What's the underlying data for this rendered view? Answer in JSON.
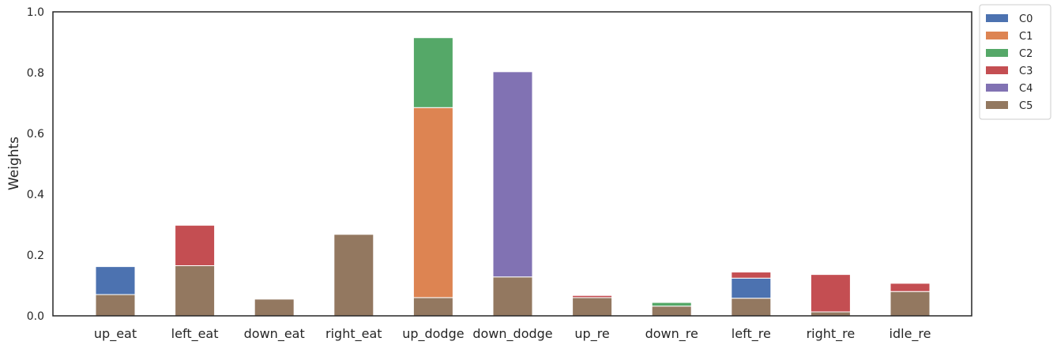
{
  "chart_data": {
    "type": "bar",
    "stacked": true,
    "ylabel": "Weights",
    "ylim": [
      0,
      1.0
    ],
    "yticks": [
      "0.0",
      "0.2",
      "0.4",
      "0.6",
      "0.8",
      "1.0"
    ],
    "grid": false,
    "legend_position": "outside-top-right",
    "categories": [
      "up_eat",
      "left_eat",
      "down_eat",
      "right_eat",
      "up_dodge",
      "down_dodge",
      "up_re",
      "down_re",
      "left_re",
      "right_re",
      "idle_re"
    ],
    "series": [
      {
        "name": "C5",
        "color": "#937860",
        "values": [
          0.07,
          0.165,
          0.055,
          0.268,
          0.06,
          0.128,
          0.06,
          0.032,
          0.058,
          0.013,
          0.08
        ]
      },
      {
        "name": "C0",
        "color": "#4c72b0",
        "values": [
          0.092,
          0,
          0,
          0,
          0,
          0,
          0,
          0,
          0.066,
          0,
          0
        ]
      },
      {
        "name": "C1",
        "color": "#dd8452",
        "values": [
          0,
          0,
          0,
          0,
          0.625,
          0,
          0,
          0,
          0,
          0,
          0
        ]
      },
      {
        "name": "C2",
        "color": "#55a868",
        "values": [
          0,
          0,
          0,
          0,
          0.23,
          0,
          0,
          0.012,
          0,
          0,
          0
        ]
      },
      {
        "name": "C3",
        "color": "#c44e52",
        "values": [
          0,
          0.133,
          0,
          0,
          0,
          0,
          0.007,
          0,
          0.02,
          0.123,
          0.027
        ]
      },
      {
        "name": "C4",
        "color": "#8172b3",
        "values": [
          0,
          0,
          0,
          0,
          0,
          0.675,
          0,
          0,
          0,
          0,
          0
        ]
      }
    ],
    "legend_order": [
      "C0",
      "C1",
      "C2",
      "C3",
      "C4",
      "C5"
    ]
  }
}
